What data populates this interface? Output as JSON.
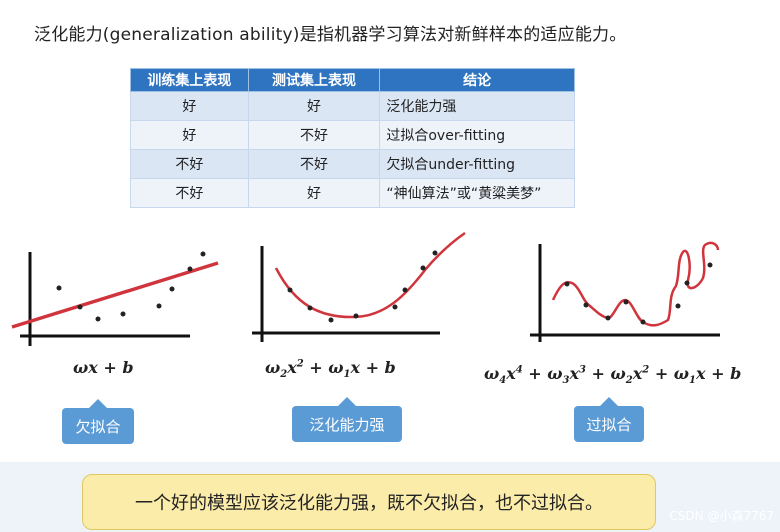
{
  "intro": "泛化能力(generalization ability)是指机器学习算法对新鲜样本的适应能力。",
  "table": {
    "headers": [
      "训练集上表现",
      "测试集上表现",
      "结论"
    ],
    "rows": [
      [
        "好",
        "好",
        "泛化能力强"
      ],
      [
        "好",
        "不好",
        "过拟合over-fitting"
      ],
      [
        "不好",
        "不好",
        "欠拟合under-fitting"
      ],
      [
        "不好",
        "好",
        "“神仙算法”或“黄粱美梦”"
      ]
    ]
  },
  "tags": {
    "underfit": "欠拟合",
    "good": "泛化能力强",
    "overfit": "过拟合"
  },
  "conclusion": "一个好的模型应该泛化能力强，既不欠拟合，也不过拟合。",
  "watermark": "CSDN @小森7767",
  "colors": {
    "header": "#2e74c0",
    "curve": "#d0353d",
    "tag": "#5b9bd5",
    "note": "#fbecaa"
  }
}
